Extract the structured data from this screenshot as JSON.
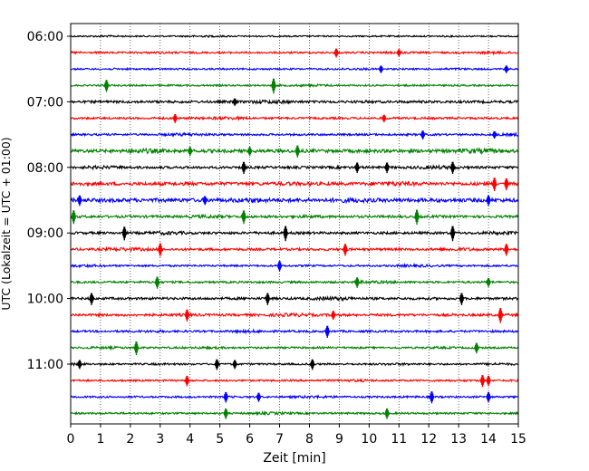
{
  "chart_data": {
    "type": "line",
    "title": "",
    "xlabel": "Zeit  [min]",
    "ylabel": "UTC (Lokalzeit = UTC + 01:00)",
    "xlim": [
      0,
      15
    ],
    "x_ticks": [
      "0",
      "1",
      "2",
      "3",
      "4",
      "5",
      "6",
      "7",
      "8",
      "9",
      "10",
      "11",
      "12",
      "13",
      "14",
      "15"
    ],
    "y_ticks": [
      "06:00",
      "07:00",
      "08:00",
      "09:00",
      "10:00",
      "11:00"
    ],
    "grid": "vertical dotted",
    "legend": "none",
    "colors_cycle": [
      "#000000",
      "#ff0000",
      "#0000ff",
      "#008000"
    ],
    "series": [
      {
        "start": "05:59",
        "color": "#000000",
        "noise": 0.35,
        "spikes": []
      },
      {
        "start": "06:14",
        "color": "#ff0000",
        "noise": 0.45,
        "spikes": [
          [
            8.9,
            1.2
          ],
          [
            11.0,
            1.0
          ]
        ]
      },
      {
        "start": "06:29",
        "color": "#0000ff",
        "noise": 0.4,
        "spikes": [
          [
            10.4,
            1.0
          ],
          [
            14.6,
            1.0
          ]
        ]
      },
      {
        "start": "06:44",
        "color": "#008000",
        "noise": 0.4,
        "spikes": [
          [
            1.2,
            1.6
          ],
          [
            6.8,
            2.0
          ]
        ]
      },
      {
        "start": "06:59",
        "color": "#000000",
        "noise": 0.6,
        "spikes": [
          [
            5.5,
            1.0
          ]
        ]
      },
      {
        "start": "07:14",
        "color": "#ff0000",
        "noise": 0.5,
        "spikes": [
          [
            3.5,
            1.2
          ],
          [
            10.5,
            1.0
          ]
        ]
      },
      {
        "start": "07:29",
        "color": "#0000ff",
        "noise": 0.5,
        "spikes": [
          [
            11.8,
            1.2
          ],
          [
            14.2,
            1.0
          ]
        ]
      },
      {
        "start": "07:44",
        "color": "#008000",
        "noise": 0.8,
        "spikes": [
          [
            4.0,
            1.2
          ],
          [
            6.0,
            1.2
          ],
          [
            7.6,
            1.6
          ]
        ]
      },
      {
        "start": "07:59",
        "color": "#000000",
        "noise": 0.6,
        "spikes": [
          [
            5.8,
            1.6
          ],
          [
            9.6,
            1.4
          ],
          [
            10.6,
            1.4
          ],
          [
            12.8,
            1.6
          ]
        ]
      },
      {
        "start": "08:14",
        "color": "#ff0000",
        "noise": 0.8,
        "spikes": [
          [
            14.2,
            1.8
          ],
          [
            14.6,
            1.6
          ]
        ]
      },
      {
        "start": "08:29",
        "color": "#0000ff",
        "noise": 0.9,
        "spikes": [
          [
            0.3,
            1.4
          ],
          [
            4.5,
            1.2
          ],
          [
            14.0,
            1.4
          ]
        ]
      },
      {
        "start": "08:44",
        "color": "#008000",
        "noise": 0.6,
        "spikes": [
          [
            0.1,
            1.8
          ],
          [
            5.8,
            1.8
          ],
          [
            11.6,
            2.0
          ]
        ]
      },
      {
        "start": "08:59",
        "color": "#000000",
        "noise": 0.6,
        "spikes": [
          [
            1.8,
            1.8
          ],
          [
            7.2,
            2.0
          ],
          [
            12.8,
            2.0
          ]
        ]
      },
      {
        "start": "09:14",
        "color": "#ff0000",
        "noise": 0.6,
        "spikes": [
          [
            3.0,
            1.8
          ],
          [
            9.2,
            1.6
          ],
          [
            14.6,
            1.6
          ]
        ]
      },
      {
        "start": "09:29",
        "color": "#0000ff",
        "noise": 0.45,
        "spikes": [
          [
            7.0,
            1.4
          ]
        ]
      },
      {
        "start": "09:44",
        "color": "#008000",
        "noise": 0.5,
        "spikes": [
          [
            2.9,
            1.6
          ],
          [
            9.6,
            1.4
          ],
          [
            14.0,
            1.2
          ]
        ]
      },
      {
        "start": "09:59",
        "color": "#000000",
        "noise": 0.6,
        "spikes": [
          [
            0.7,
            1.6
          ],
          [
            6.6,
            1.6
          ],
          [
            13.1,
            1.6
          ]
        ]
      },
      {
        "start": "10:14",
        "color": "#ff0000",
        "noise": 0.6,
        "spikes": [
          [
            3.9,
            1.6
          ],
          [
            8.8,
            1.2
          ],
          [
            14.4,
            2.0
          ]
        ]
      },
      {
        "start": "10:29",
        "color": "#0000ff",
        "noise": 0.5,
        "spikes": [
          [
            8.6,
            1.6
          ]
        ]
      },
      {
        "start": "10:44",
        "color": "#008000",
        "noise": 0.45,
        "spikes": [
          [
            2.2,
            1.8
          ],
          [
            13.6,
            1.4
          ]
        ]
      },
      {
        "start": "10:59",
        "color": "#000000",
        "noise": 0.45,
        "spikes": [
          [
            0.3,
            1.2
          ],
          [
            4.9,
            1.4
          ],
          [
            5.5,
            1.2
          ],
          [
            8.1,
            1.4
          ]
        ]
      },
      {
        "start": "11:14",
        "color": "#ff0000",
        "noise": 0.45,
        "spikes": [
          [
            3.9,
            1.4
          ],
          [
            13.8,
            1.6
          ],
          [
            14.0,
            1.4
          ]
        ]
      },
      {
        "start": "11:29",
        "color": "#0000ff",
        "noise": 0.45,
        "spikes": [
          [
            5.2,
            1.4
          ],
          [
            6.3,
            1.2
          ],
          [
            12.1,
            1.6
          ],
          [
            14.0,
            1.4
          ]
        ]
      },
      {
        "start": "11:44",
        "color": "#008000",
        "noise": 0.45,
        "spikes": [
          [
            5.2,
            1.4
          ],
          [
            10.6,
            1.4
          ]
        ]
      }
    ]
  }
}
